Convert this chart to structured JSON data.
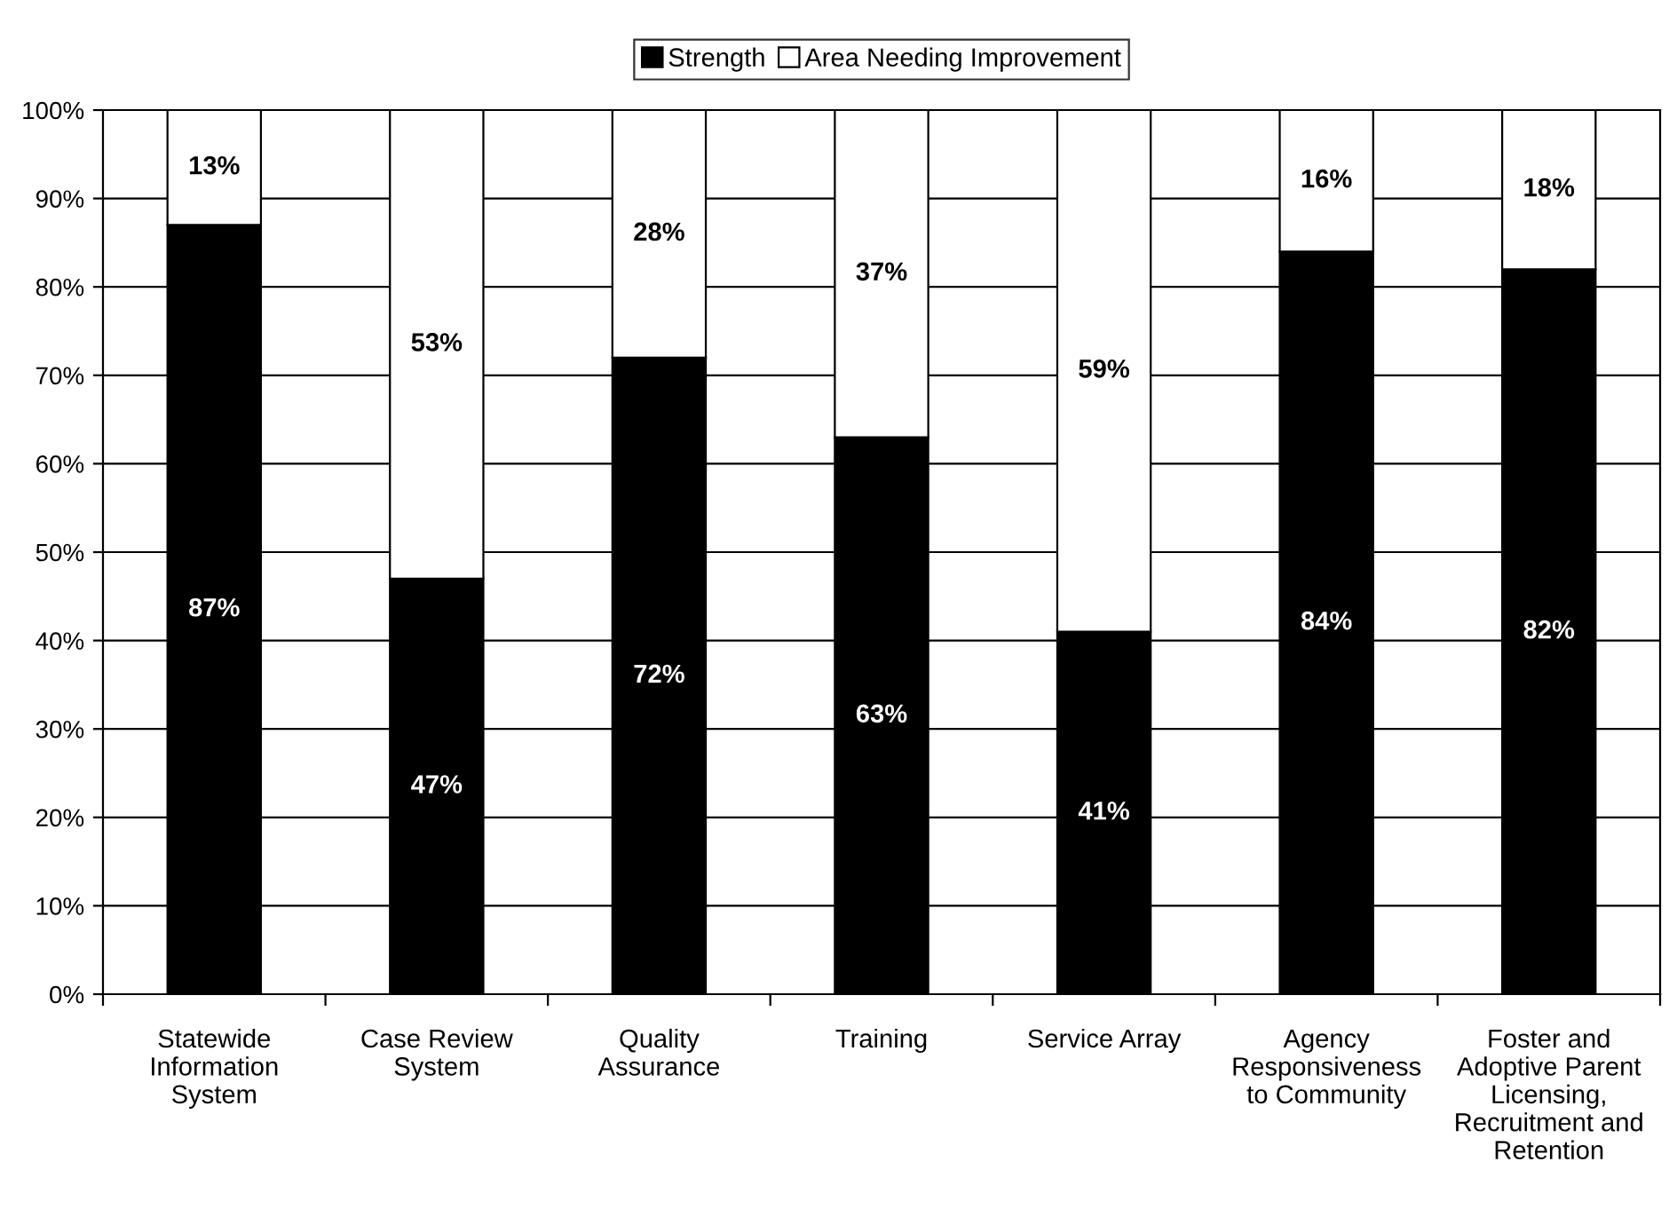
{
  "chart_data": {
    "type": "bar",
    "stacked": true,
    "categories": [
      "Statewide\nInformation\nSystem",
      "Case Review\nSystem",
      "Quality\nAssurance",
      "Training",
      "Service Array",
      "Agency\nResponsiveness\nto Community",
      "Foster and\nAdoptive Parent\nLicensing,\nRecruitment and\nRetention"
    ],
    "series": [
      {
        "name": "Strength",
        "color": "#000000",
        "values": [
          87,
          47,
          72,
          63,
          41,
          84,
          82
        ],
        "value_labels": [
          "87%",
          "47%",
          "72%",
          "63%",
          "41%",
          "84%",
          "82%"
        ]
      },
      {
        "name": "Area Needing Improvement",
        "color": "#ffffff",
        "values": [
          13,
          53,
          28,
          37,
          59,
          16,
          18
        ],
        "value_labels": [
          "13%",
          "53%",
          "28%",
          "37%",
          "59%",
          "16%",
          "18%"
        ]
      }
    ],
    "ylim": [
      0,
      100
    ],
    "yticks": [
      {
        "value": 0,
        "label": "0%"
      },
      {
        "value": 10,
        "label": "10%"
      },
      {
        "value": 20,
        "label": "20%"
      },
      {
        "value": 30,
        "label": "30%"
      },
      {
        "value": 40,
        "label": "40%"
      },
      {
        "value": 50,
        "label": "50%"
      },
      {
        "value": 60,
        "label": "60%"
      },
      {
        "value": 70,
        "label": "70%"
      },
      {
        "value": 80,
        "label": "80%"
      },
      {
        "value": 90,
        "label": "90%"
      },
      {
        "value": 100,
        "label": "100%"
      }
    ],
    "grid": "y",
    "legend": "top"
  }
}
